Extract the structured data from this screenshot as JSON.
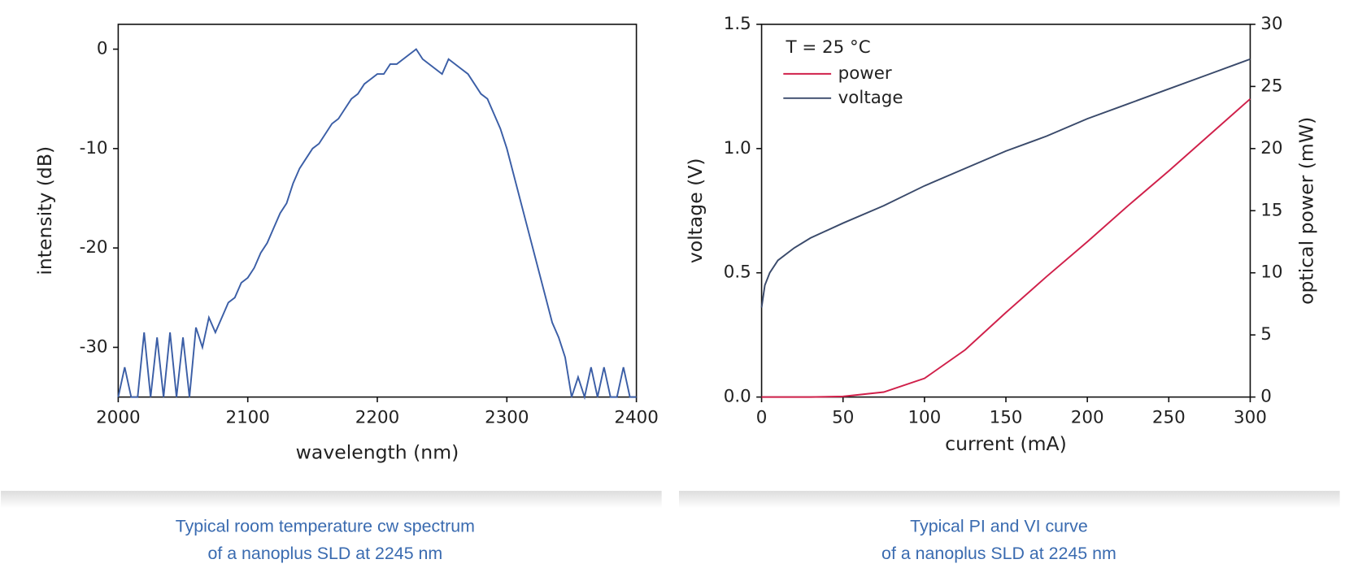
{
  "chart_data": [
    {
      "type": "line",
      "caption": [
        "Typical room temperature cw spectrum",
        "of a nanoplus SLD at 2245 nm"
      ],
      "xlabel": "wavelength (nm)",
      "ylabel": "intensity (dB)",
      "x": [
        2000,
        2005,
        2010,
        2015,
        2020,
        2025,
        2030,
        2035,
        2040,
        2045,
        2050,
        2055,
        2060,
        2065,
        2070,
        2075,
        2080,
        2085,
        2090,
        2095,
        2100,
        2105,
        2110,
        2115,
        2120,
        2125,
        2130,
        2135,
        2140,
        2145,
        2150,
        2155,
        2160,
        2165,
        2170,
        2175,
        2180,
        2185,
        2190,
        2195,
        2200,
        2205,
        2210,
        2215,
        2220,
        2225,
        2230,
        2235,
        2240,
        2245,
        2250,
        2255,
        2260,
        2265,
        2270,
        2275,
        2280,
        2285,
        2290,
        2295,
        2300,
        2305,
        2310,
        2315,
        2320,
        2325,
        2330,
        2335,
        2340,
        2345,
        2350,
        2355,
        2360,
        2365,
        2370,
        2375,
        2380,
        2385,
        2390,
        2395,
        2400
      ],
      "series": [
        {
          "color": "#3b5ea6",
          "values": [
            -35,
            -32,
            -35,
            -35,
            -28.5,
            -35,
            -29,
            -35,
            -28.5,
            -35,
            -29,
            -35,
            -28,
            -30,
            -27,
            -28.5,
            -27,
            -25.5,
            -25,
            -23.5,
            -23,
            -22,
            -20.5,
            -19.5,
            -18,
            -16.5,
            -15.5,
            -13.5,
            -12,
            -11,
            -10,
            -9.5,
            -8.5,
            -7.5,
            -7,
            -6,
            -5,
            -4.5,
            -3.5,
            -3,
            -2.5,
            -2.5,
            -1.5,
            -1.5,
            -1,
            -0.5,
            0,
            -1,
            -1.5,
            -2,
            -2.5,
            -1,
            -1.5,
            -2,
            -2.5,
            -3.5,
            -4.5,
            -5,
            -6.5,
            -8,
            -10,
            -12.5,
            -15,
            -17.5,
            -20,
            -22.5,
            -25,
            -27.5,
            -29,
            -31,
            -35,
            -33,
            -35,
            -32,
            -35,
            -32,
            -35,
            -35,
            -32,
            -35,
            -35
          ]
        }
      ],
      "xlim": [
        2000,
        2400
      ],
      "xticks": [
        2000,
        2100,
        2200,
        2300,
        2400
      ],
      "ylim": [
        -35,
        2.5
      ],
      "yticks": [
        0,
        -10,
        -20,
        -30
      ],
      "grid": false
    },
    {
      "type": "line",
      "caption": [
        "Typical PI and VI curve",
        "of a nanoplus SLD at 2245 nm"
      ],
      "xlabel": "current (mA)",
      "ylabel": "voltage (V)",
      "y2label": "optical power (mW)",
      "annotation": "T = 25 °C",
      "legend": "top-left",
      "x": [
        0,
        2,
        5,
        10,
        20,
        30,
        50,
        75,
        100,
        125,
        150,
        175,
        200,
        225,
        250,
        275,
        300
      ],
      "series": [
        {
          "name": "power",
          "color": "#d0204a",
          "axis": "y2",
          "values": [
            0,
            0,
            0,
            0,
            0,
            0,
            0.05,
            0.4,
            1.5,
            3.8,
            6.8,
            9.7,
            12.5,
            15.4,
            18.2,
            21.1,
            24
          ]
        },
        {
          "name": "voltage",
          "color": "#3a4a6b",
          "values": [
            0.36,
            0.45,
            0.5,
            0.55,
            0.6,
            0.64,
            0.7,
            0.77,
            0.85,
            0.92,
            0.99,
            1.05,
            1.12,
            1.18,
            1.24,
            1.3,
            1.36
          ]
        }
      ],
      "xlim": [
        0,
        300
      ],
      "xticks": [
        0,
        50,
        100,
        150,
        200,
        250,
        300
      ],
      "ylim": [
        0,
        1.5
      ],
      "yticks": [
        {
          "value": 0,
          "label": "0.0"
        },
        0.5,
        {
          "value": 1,
          "label": "1.0"
        },
        1.5
      ],
      "y2lim": [
        0,
        30
      ],
      "y2ticks": [
        0,
        5,
        10,
        15,
        20,
        25,
        30
      ],
      "grid": false
    }
  ]
}
